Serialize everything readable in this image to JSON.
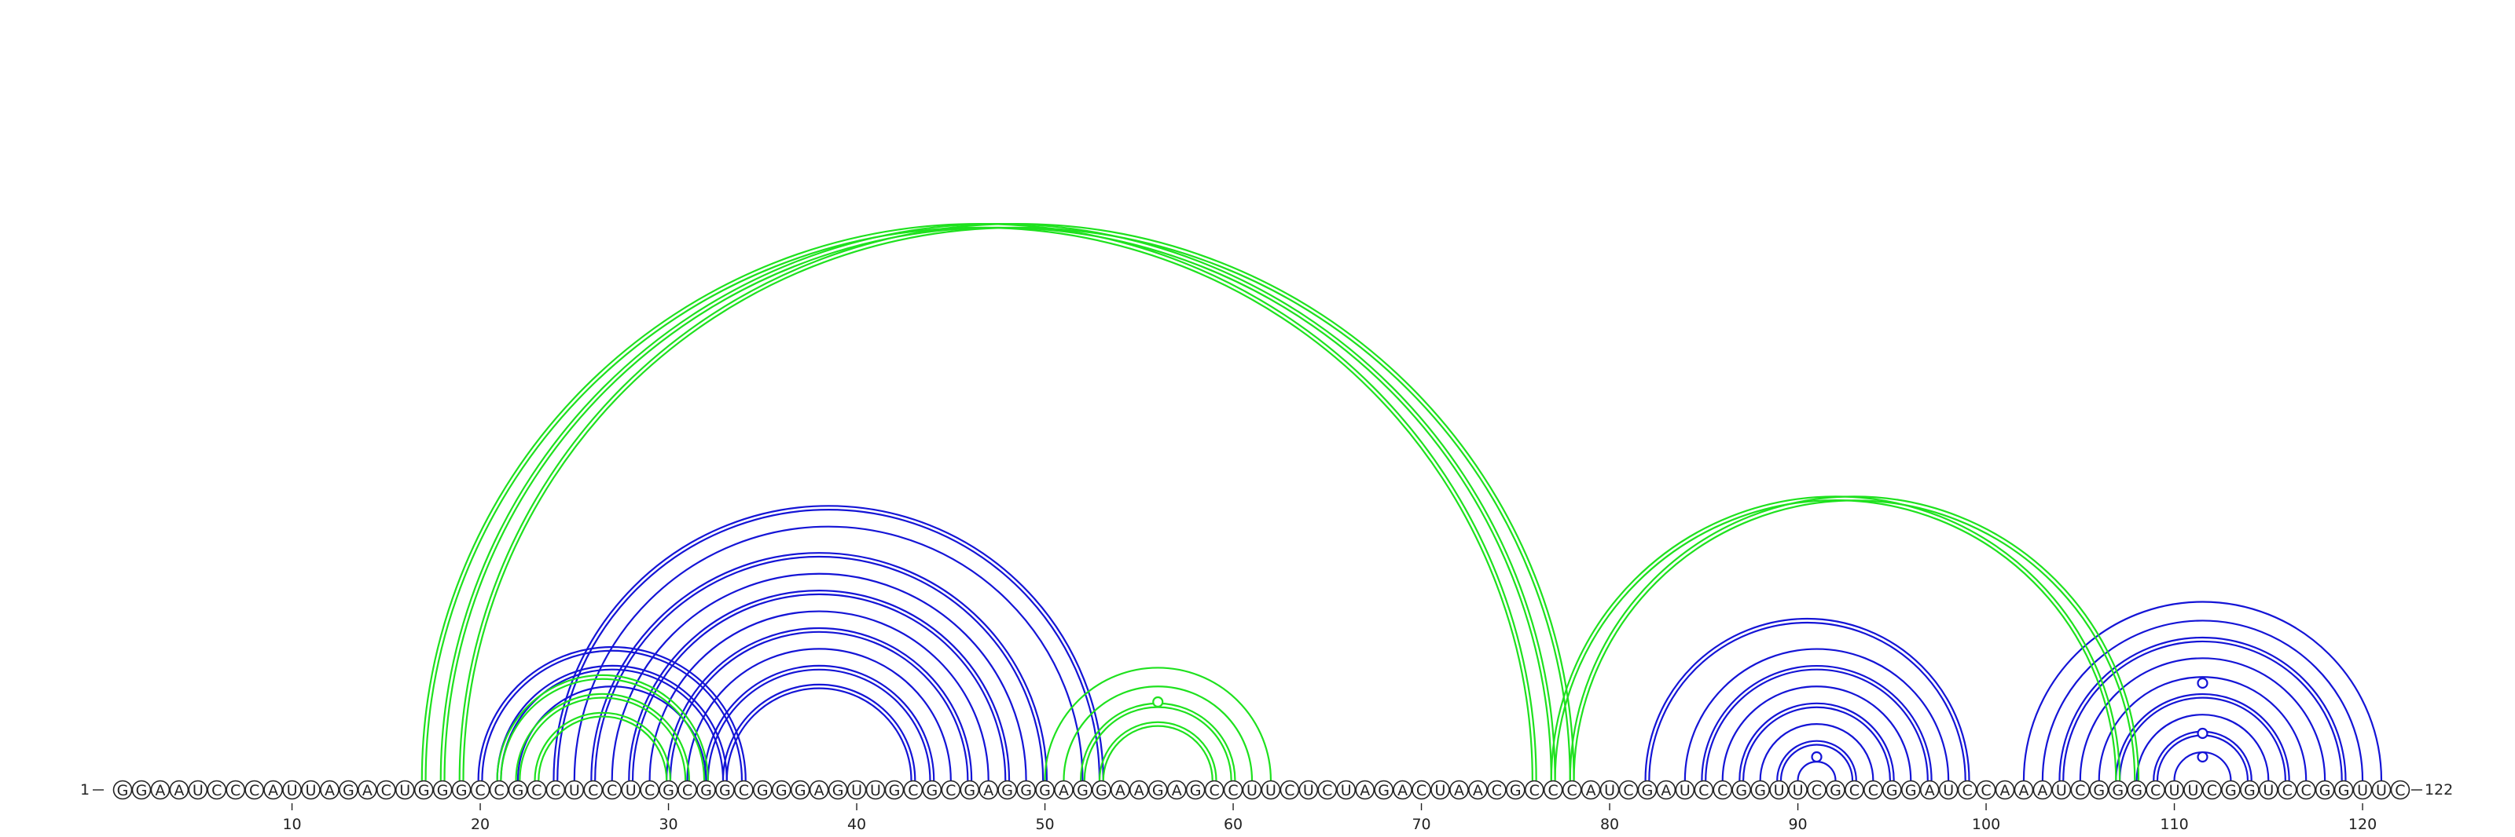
{
  "sequence": "GGAAUCCCAUUAGACUGGGCCGCCUCCUCGCGGCGGGAGUUGCGCGAGGGAGGAAGAGCCUUCUCUAGACUAACGCCCAUCGAUCCGGUUCGCCGGAUCCAAAUCGGGCUUCGGUCCGGUUC",
  "start_label": "1",
  "end_label": "122",
  "ticks": [
    10,
    20,
    30,
    40,
    50,
    60,
    70,
    80,
    90,
    100,
    110,
    120
  ],
  "colors": {
    "blue": "#1414d6",
    "green": "#1ee11e"
  },
  "pairs": [
    {
      "i": 20,
      "j": 34,
      "color": "blue",
      "lines": 2
    },
    {
      "i": 21,
      "j": 33,
      "color": "blue",
      "lines": 2
    },
    {
      "i": 22,
      "j": 32,
      "color": "blue",
      "lines": 1
    },
    {
      "i": 24,
      "j": 53,
      "color": "blue",
      "lines": 2
    },
    {
      "i": 25,
      "j": 52,
      "color": "blue",
      "lines": 1
    },
    {
      "i": 26,
      "j": 50,
      "color": "blue",
      "lines": 2
    },
    {
      "i": 27,
      "j": 49,
      "color": "blue",
      "lines": 1
    },
    {
      "i": 28,
      "j": 48,
      "color": "blue",
      "lines": 2
    },
    {
      "i": 29,
      "j": 47,
      "color": "blue",
      "lines": 1
    },
    {
      "i": 30,
      "j": 46,
      "color": "blue",
      "lines": 2
    },
    {
      "i": 31,
      "j": 45,
      "color": "blue",
      "lines": 1
    },
    {
      "i": 32,
      "j": 44,
      "color": "blue",
      "lines": 2
    },
    {
      "i": 33,
      "j": 43,
      "color": "blue",
      "lines": 2
    },
    {
      "i": 82,
      "j": 99,
      "color": "blue",
      "lines": 2
    },
    {
      "i": 84,
      "j": 98,
      "color": "blue",
      "lines": 1
    },
    {
      "i": 85,
      "j": 97,
      "color": "blue",
      "lines": 2
    },
    {
      "i": 86,
      "j": 96,
      "color": "blue",
      "lines": 1
    },
    {
      "i": 87,
      "j": 95,
      "color": "blue",
      "lines": 2
    },
    {
      "i": 88,
      "j": 94,
      "color": "blue",
      "lines": 1
    },
    {
      "i": 89,
      "j": 93,
      "color": "blue",
      "lines": 2
    },
    {
      "i": 90,
      "j": 92,
      "color": "blue",
      "lines": 1
    },
    {
      "i": 102,
      "j": 121,
      "color": "blue",
      "lines": 1
    },
    {
      "i": 103,
      "j": 120,
      "color": "blue",
      "lines": 1
    },
    {
      "i": 104,
      "j": 119,
      "color": "blue",
      "lines": 2
    },
    {
      "i": 105,
      "j": 118,
      "color": "blue",
      "lines": 1
    },
    {
      "i": 106,
      "j": 117,
      "color": "blue",
      "lines": 1
    },
    {
      "i": 107,
      "j": 116,
      "color": "blue",
      "lines": 2
    },
    {
      "i": 108,
      "j": 115,
      "color": "blue",
      "lines": 1
    },
    {
      "i": 109,
      "j": 114,
      "color": "blue",
      "lines": 2
    },
    {
      "i": 110,
      "j": 113,
      "color": "blue",
      "lines": 1
    },
    {
      "i": 17,
      "j": 76,
      "color": "green",
      "lines": 2
    },
    {
      "i": 18,
      "j": 77,
      "color": "green",
      "lines": 2
    },
    {
      "i": 19,
      "j": 78,
      "color": "green",
      "lines": 2
    },
    {
      "i": 21,
      "j": 32,
      "color": "green",
      "lines": 2
    },
    {
      "i": 22,
      "j": 31,
      "color": "green",
      "lines": 2
    },
    {
      "i": 23,
      "j": 30,
      "color": "green",
      "lines": 2
    },
    {
      "i": 50,
      "j": 62,
      "color": "green",
      "lines": 1
    },
    {
      "i": 51,
      "j": 61,
      "color": "green",
      "lines": 1
    },
    {
      "i": 52,
      "j": 60,
      "color": "green",
      "lines": 2
    },
    {
      "i": 53,
      "j": 59,
      "color": "green",
      "lines": 2
    },
    {
      "i": 77,
      "j": 107,
      "color": "green",
      "lines": 2
    },
    {
      "i": 78,
      "j": 108,
      "color": "green",
      "lines": 2
    }
  ],
  "rings": [
    {
      "pos": 56,
      "h": 100,
      "color": "green"
    },
    {
      "pos": 91,
      "h": 30,
      "color": "blue"
    },
    {
      "pos": 111.5,
      "h": 124,
      "color": "blue"
    },
    {
      "pos": 111.5,
      "h": 60,
      "color": "blue"
    },
    {
      "pos": 111.5,
      "h": 30,
      "color": "blue"
    }
  ]
}
